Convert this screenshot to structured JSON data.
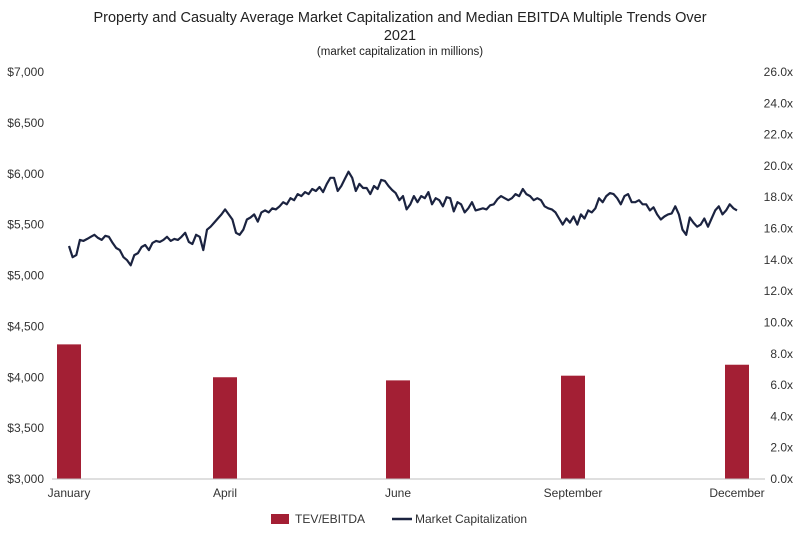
{
  "chart_data": {
    "type": "bar+line",
    "title_line1": "Property and Casualty Average Market Capitalization and Median EBITDA Multiple Trends Over",
    "title_line2": "2021",
    "subtitle": "(market capitalization in millions)",
    "x_ticks": [
      "January",
      "April",
      "June",
      "September",
      "December"
    ],
    "y_left_ticks": [
      "$7,000",
      "$6,500",
      "$6,000",
      "$5,500",
      "$5,000",
      "$4,500",
      "$4,000",
      "$3,500",
      "$3,000"
    ],
    "y_right_ticks": [
      "26.0x",
      "24.0x",
      "22.0x",
      "20.0x",
      "18.0x",
      "16.0x",
      "14.0x",
      "12.0x",
      "10.0x",
      "8.0x",
      "6.0x",
      "4.0x",
      "2.0x",
      "0.0x"
    ],
    "ylim_left": [
      3000,
      7000
    ],
    "ylim_right": [
      0,
      26
    ],
    "series": [
      {
        "name": "TEV/EBITDA",
        "type": "bar",
        "axis": "right",
        "categories": [
          "January",
          "April",
          "June",
          "September",
          "December"
        ],
        "values": [
          8.6,
          6.5,
          6.3,
          6.6,
          7.3
        ],
        "color": "#A31F34"
      },
      {
        "name": "Market Capitalization",
        "type": "line",
        "axis": "left",
        "color": "#1B2340",
        "values": [
          5290,
          5180,
          5200,
          5350,
          5340,
          5360,
          5380,
          5400,
          5370,
          5350,
          5390,
          5380,
          5320,
          5270,
          5250,
          5180,
          5150,
          5100,
          5200,
          5220,
          5280,
          5300,
          5250,
          5320,
          5340,
          5330,
          5350,
          5380,
          5340,
          5360,
          5350,
          5380,
          5420,
          5330,
          5310,
          5400,
          5380,
          5250,
          5450,
          5480,
          5520,
          5560,
          5600,
          5650,
          5600,
          5550,
          5420,
          5400,
          5450,
          5550,
          5570,
          5600,
          5530,
          5620,
          5640,
          5620,
          5660,
          5650,
          5680,
          5720,
          5700,
          5760,
          5740,
          5800,
          5780,
          5820,
          5800,
          5850,
          5830,
          5870,
          5820,
          5900,
          5960,
          5960,
          5830,
          5880,
          5950,
          6020,
          5960,
          5830,
          5900,
          5860,
          5860,
          5800,
          5880,
          5850,
          5940,
          5930,
          5880,
          5840,
          5810,
          5740,
          5780,
          5650,
          5700,
          5780,
          5720,
          5780,
          5760,
          5820,
          5700,
          5760,
          5740,
          5680,
          5770,
          5760,
          5630,
          5720,
          5700,
          5620,
          5660,
          5720,
          5640,
          5650,
          5660,
          5650,
          5690,
          5700,
          5750,
          5780,
          5760,
          5740,
          5760,
          5800,
          5780,
          5850,
          5800,
          5780,
          5740,
          5760,
          5740,
          5680,
          5660,
          5650,
          5620,
          5560,
          5500,
          5560,
          5520,
          5580,
          5500,
          5600,
          5560,
          5640,
          5620,
          5660,
          5760,
          5720,
          5780,
          5810,
          5800,
          5760,
          5700,
          5780,
          5800,
          5720,
          5720,
          5740,
          5700,
          5700,
          5640,
          5670,
          5600,
          5550,
          5580,
          5600,
          5610,
          5680,
          5600,
          5450,
          5400,
          5570,
          5520,
          5480,
          5500,
          5560,
          5480,
          5560,
          5640,
          5680,
          5600,
          5640,
          5700,
          5660,
          5640
        ]
      }
    ],
    "legend_position": "bottom",
    "grid": false
  }
}
